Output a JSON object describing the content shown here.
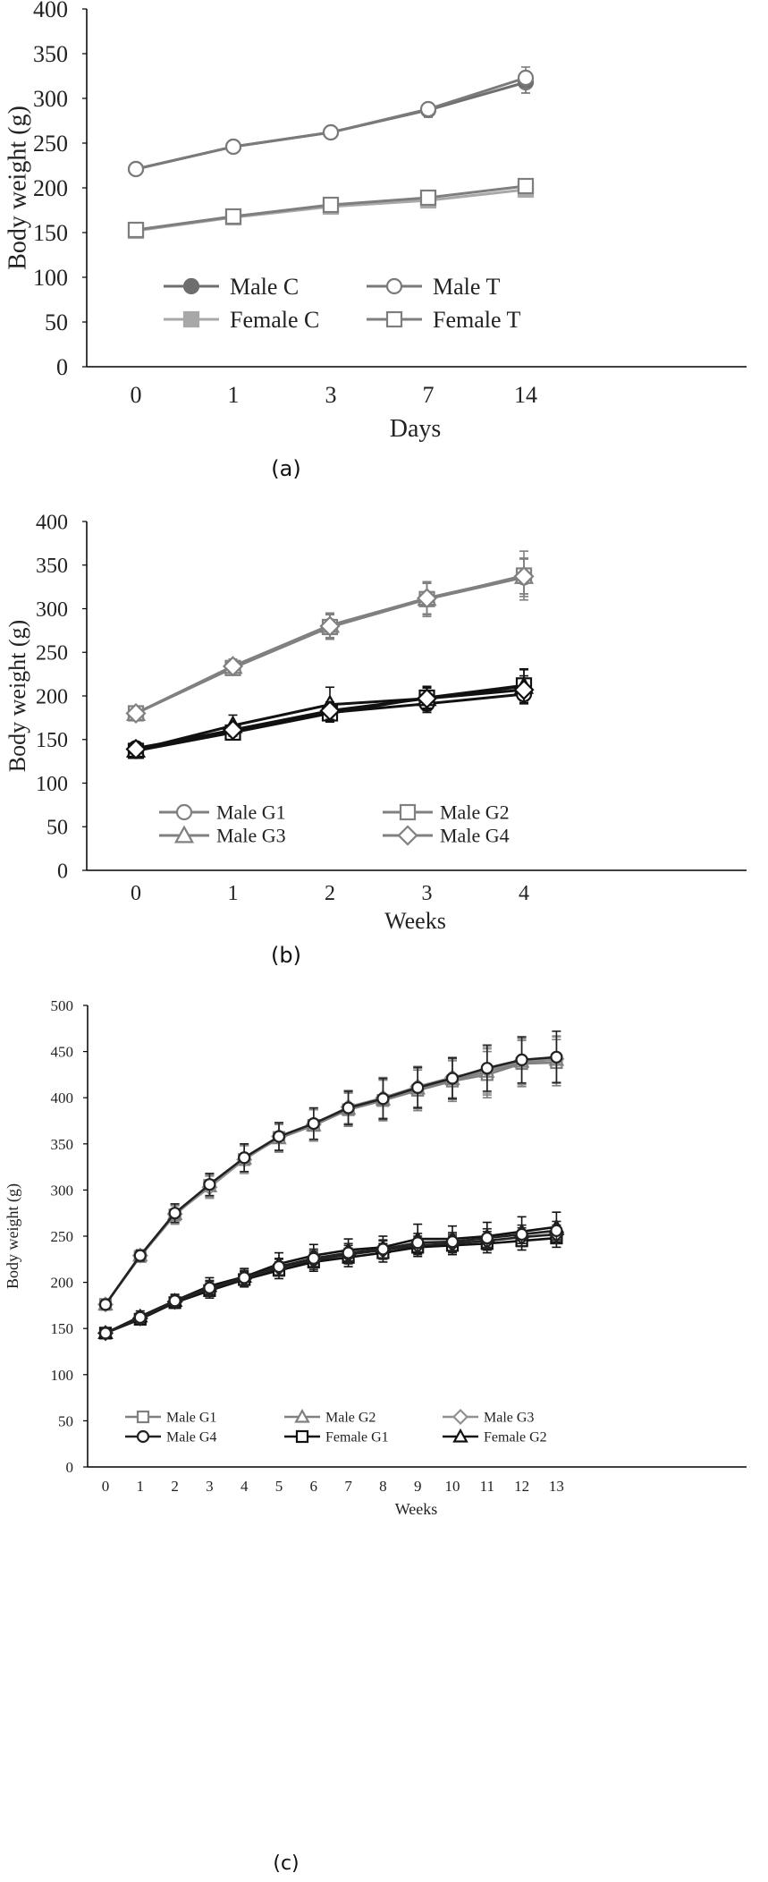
{
  "chart_data": [
    {
      "type": "line",
      "caption": "(a)",
      "xlabel": "Days",
      "ylabel": "Body weight (g)",
      "categories": [
        "0",
        "1",
        "3",
        "7",
        "14"
      ],
      "ylim": [
        0,
        400
      ],
      "yticks": [
        0,
        50,
        100,
        150,
        200,
        250,
        300,
        350,
        400
      ],
      "grid": false,
      "legend_position": "bottom-center",
      "series": [
        {
          "name": "Male C",
          "values": [
            221,
            246,
            262,
            287,
            318
          ],
          "err": [
            4,
            5,
            6,
            8,
            12
          ],
          "color": "#6e6e6e",
          "marker": "circle",
          "filled": true
        },
        {
          "name": "Male T",
          "values": [
            221,
            246,
            262,
            288,
            323
          ],
          "err": [
            3,
            4,
            5,
            7,
            12
          ],
          "color": "#7a7a7a",
          "marker": "circle",
          "filled": false
        },
        {
          "name": "Female C",
          "values": [
            152,
            167,
            179,
            186,
            198
          ],
          "err": [
            3,
            3,
            4,
            4,
            5
          ],
          "color": "#a8a8a8",
          "marker": "square",
          "filled": true
        },
        {
          "name": "Female T",
          "values": [
            153,
            168,
            181,
            189,
            202
          ],
          "err": [
            3,
            3,
            4,
            4,
            5
          ],
          "color": "#7e7e7e",
          "marker": "square",
          "filled": false
        }
      ]
    },
    {
      "type": "line",
      "caption": "(b)",
      "xlabel": "Weeks",
      "ylabel": "Body weight (g)",
      "categories": [
        "0",
        "1",
        "2",
        "3",
        "4"
      ],
      "ylim": [
        0,
        400
      ],
      "yticks": [
        0,
        50,
        100,
        150,
        200,
        250,
        300,
        350,
        400
      ],
      "grid": false,
      "legend_position": "bottom-center",
      "series": [
        {
          "name": "Male G1",
          "values": [
            180,
            233,
            280,
            311,
            336
          ],
          "err": [
            5,
            9,
            15,
            20,
            22
          ],
          "color": "#808080",
          "marker": "circle",
          "filled": false
        },
        {
          "name": "Male G2",
          "values": [
            180,
            232,
            279,
            311,
            338
          ],
          "err": [
            5,
            8,
            14,
            18,
            28
          ],
          "color": "#808080",
          "marker": "square",
          "filled": false
        },
        {
          "name": "Male G3",
          "values": [
            180,
            234,
            281,
            312,
            337
          ],
          "err": [
            5,
            8,
            14,
            18,
            20
          ],
          "color": "#808080",
          "marker": "triangle",
          "filled": false
        },
        {
          "name": "Male G4",
          "values": [
            180,
            234,
            280,
            312,
            337
          ],
          "err": [
            5,
            8,
            14,
            18,
            20
          ],
          "color": "#808080",
          "marker": "diamond",
          "filled": false
        },
        {
          "name": "",
          "values": [
            140,
            160,
            181,
            191,
            202
          ],
          "err": [
            4,
            6,
            8,
            10,
            10
          ],
          "color": "#111111",
          "marker": "circle",
          "filled": false
        },
        {
          "name": "",
          "values": [
            137,
            158,
            180,
            198,
            212
          ],
          "err": [
            4,
            6,
            8,
            12,
            18
          ],
          "color": "#111111",
          "marker": "square",
          "filled": false
        },
        {
          "name": "",
          "values": [
            138,
            166,
            190,
            197,
            211
          ],
          "err": [
            4,
            12,
            20,
            14,
            20
          ],
          "color": "#111111",
          "marker": "triangle",
          "filled": false
        },
        {
          "name": "",
          "values": [
            139,
            161,
            183,
            197,
            207
          ],
          "err": [
            4,
            7,
            10,
            12,
            16
          ],
          "color": "#111111",
          "marker": "diamond",
          "filled": false
        }
      ]
    },
    {
      "type": "line",
      "caption": "(c)",
      "xlabel": "Weeks",
      "ylabel": "Body weight (g)",
      "categories": [
        "0",
        "1",
        "2",
        "3",
        "4",
        "5",
        "6",
        "7",
        "8",
        "9",
        "10",
        "11",
        "12",
        "13"
      ],
      "ylim": [
        0,
        500
      ],
      "yticks": [
        0,
        50,
        100,
        150,
        200,
        250,
        300,
        350,
        400,
        450,
        500
      ],
      "grid": false,
      "legend_position": "bottom-center",
      "series": [
        {
          "name": "Male G1",
          "values": [
            176,
            228,
            273,
            305,
            333,
            357,
            370,
            387,
            397,
            408,
            418,
            425,
            437,
            438
          ],
          "err": [
            5,
            6,
            10,
            12,
            15,
            15,
            17,
            18,
            22,
            22,
            22,
            25,
            25,
            25
          ],
          "color": "#808080",
          "marker": "square",
          "filled": false
        },
        {
          "name": "Male G2",
          "values": [
            176,
            229,
            274,
            304,
            334,
            356,
            370,
            388,
            398,
            410,
            420,
            428,
            439,
            441
          ],
          "err": [
            5,
            6,
            10,
            12,
            15,
            15,
            17,
            18,
            22,
            22,
            22,
            25,
            25,
            25
          ],
          "color": "#808080",
          "marker": "triangle",
          "filled": false
        },
        {
          "name": "Male G3",
          "values": [
            176,
            229,
            274,
            303,
            333,
            358,
            371,
            390,
            400,
            412,
            422,
            430,
            440,
            442
          ],
          "err": [
            5,
            6,
            10,
            12,
            15,
            15,
            17,
            18,
            22,
            22,
            22,
            25,
            25,
            25
          ],
          "color": "#909090",
          "marker": "diamond",
          "filled": false
        },
        {
          "name": "Male G4",
          "values": [
            176,
            229,
            275,
            306,
            335,
            358,
            372,
            389,
            399,
            411,
            421,
            432,
            441,
            444
          ],
          "err": [
            5,
            6,
            10,
            12,
            15,
            15,
            17,
            18,
            22,
            22,
            22,
            25,
            25,
            28
          ],
          "color": "#222222",
          "marker": "circle",
          "filled": false
        },
        {
          "name": "Female G1",
          "values": [
            145,
            160,
            178,
            191,
            203,
            213,
            222,
            227,
            232,
            238,
            240,
            242,
            245,
            248
          ],
          "err": [
            4,
            5,
            6,
            8,
            8,
            9,
            10,
            10,
            10,
            10,
            10,
            10,
            10,
            10
          ],
          "color": "#111111",
          "marker": "square",
          "filled": false
        },
        {
          "name": "Female G2",
          "values": [
            145,
            163,
            180,
            196,
            206,
            220,
            229,
            235,
            238,
            247,
            247,
            250,
            255,
            260
          ],
          "err": [
            4,
            6,
            7,
            9,
            9,
            12,
            12,
            12,
            12,
            16,
            14,
            15,
            16,
            16
          ],
          "color": "#111111",
          "marker": "triangle",
          "filled": false
        },
        {
          "name": "",
          "values": [
            145,
            161,
            179,
            193,
            204,
            216,
            224,
            230,
            235,
            240,
            242,
            245,
            249,
            252
          ],
          "err": [
            4,
            5,
            6,
            8,
            8,
            9,
            10,
            10,
            10,
            10,
            10,
            10,
            10,
            10
          ],
          "color": "#222222",
          "marker": "diamond",
          "filled": false
        },
        {
          "name": "",
          "values": [
            145,
            162,
            180,
            194,
            205,
            217,
            226,
            232,
            236,
            243,
            244,
            248,
            252,
            256
          ],
          "err": [
            4,
            5,
            6,
            8,
            8,
            9,
            10,
            10,
            10,
            10,
            10,
            10,
            10,
            10
          ],
          "color": "#222222",
          "marker": "circle",
          "filled": false
        }
      ]
    }
  ]
}
